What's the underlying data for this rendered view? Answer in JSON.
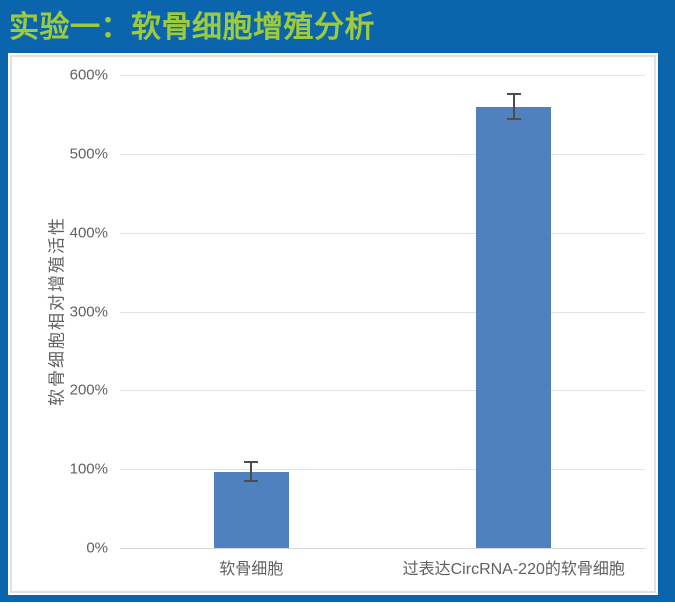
{
  "header": {
    "title": "实验一：软骨细胞增殖分析"
  },
  "chart_data": {
    "type": "bar",
    "title": "实验一：软骨细胞增殖分析",
    "categories": [
      "软骨细胞",
      "过表达CircRNA-220的软骨细胞"
    ],
    "values": [
      97,
      560
    ],
    "errors": [
      12,
      16
    ],
    "xlabel": "",
    "ylabel": "软骨细胞相对增殖活性",
    "ylim": [
      0,
      600
    ],
    "ytick_step": 100,
    "ytick_labels": [
      "0%",
      "100%",
      "200%",
      "300%",
      "400%",
      "500%",
      "600%"
    ],
    "grid": true,
    "legend_position": "none",
    "colors": {
      "bar": "#4E81BD",
      "error_bar": "#4D4D4D",
      "slide_background": "#0B65AD",
      "title_text": "#9DCB3C",
      "gridline": "#E3E3E3",
      "axis_text": "#616161",
      "plot_background": "#FFFFFF"
    }
  }
}
